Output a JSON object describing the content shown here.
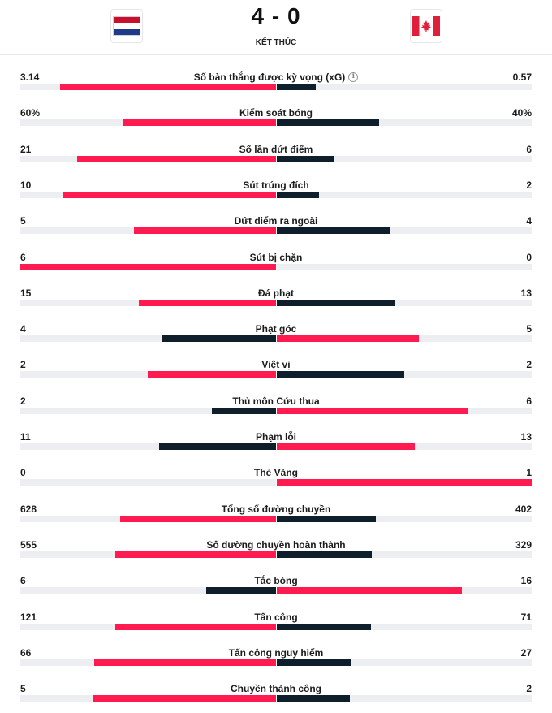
{
  "match": {
    "score": "4 - 0",
    "status": "KẾT THÚC",
    "home_flag": "netherlands-flag-icon",
    "away_flag": "canada-flag-icon"
  },
  "colors": {
    "highlight": "#ff1a4f",
    "dark": "#0e1e2b",
    "track": "#eceef1"
  },
  "stats": [
    {
      "label": "Số bàn thắng được kỳ vọng (xG)",
      "home": "3.14",
      "away": "0.57",
      "home_share": 0.846,
      "away_share": 0.154,
      "info": true
    },
    {
      "label": "Kiểm soát bóng",
      "home": "60%",
      "away": "40%",
      "home_share": 0.6,
      "away_share": 0.4
    },
    {
      "label": "Số lần dứt điểm",
      "home": "21",
      "away": "6",
      "home_share": 0.778,
      "away_share": 0.222
    },
    {
      "label": "Sút trúng đích",
      "home": "10",
      "away": "2",
      "home_share": 0.833,
      "away_share": 0.167
    },
    {
      "label": "Dứt điểm ra ngoài",
      "home": "5",
      "away": "4",
      "home_share": 0.556,
      "away_share": 0.444
    },
    {
      "label": "Sút bị chặn",
      "home": "6",
      "away": "0",
      "home_share": 1.0,
      "away_share": 0.0
    },
    {
      "label": "Đá phạt",
      "home": "15",
      "away": "13",
      "home_share": 0.536,
      "away_share": 0.464
    },
    {
      "label": "Phạt góc",
      "home": "4",
      "away": "5",
      "home_share": 0.444,
      "away_share": 0.556
    },
    {
      "label": "Việt vị",
      "home": "2",
      "away": "2",
      "home_share": 0.5,
      "away_share": 0.5
    },
    {
      "label": "Thủ môn Cứu thua",
      "home": "2",
      "away": "6",
      "home_share": 0.25,
      "away_share": 0.75
    },
    {
      "label": "Phạm lỗi",
      "home": "11",
      "away": "13",
      "home_share": 0.458,
      "away_share": 0.542
    },
    {
      "label": "Thẻ Vàng",
      "home": "0",
      "away": "1",
      "home_share": 0.0,
      "away_share": 1.0
    },
    {
      "label": "Tổng số đường chuyền",
      "home": "628",
      "away": "402",
      "home_share": 0.61,
      "away_share": 0.39
    },
    {
      "label": "Số đường chuyền hoàn thành",
      "home": "555",
      "away": "329",
      "home_share": 0.628,
      "away_share": 0.372
    },
    {
      "label": "Tắc bóng",
      "home": "6",
      "away": "16",
      "home_share": 0.273,
      "away_share": 0.727
    },
    {
      "label": "Tấn công",
      "home": "121",
      "away": "71",
      "home_share": 0.63,
      "away_share": 0.37
    },
    {
      "label": "Tấn công nguy hiểm",
      "home": "66",
      "away": "27",
      "home_share": 0.71,
      "away_share": 0.29
    },
    {
      "label": "Chuyền thành công",
      "home": "5",
      "away": "2",
      "home_share": 0.714,
      "away_share": 0.286
    }
  ]
}
